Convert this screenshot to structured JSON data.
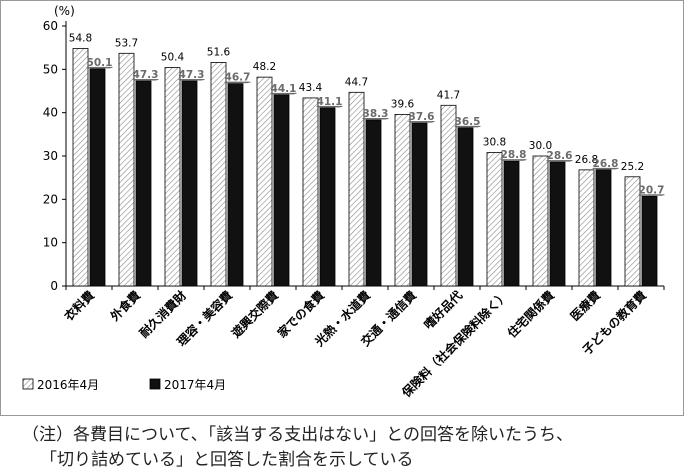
{
  "chart_data": {
    "type": "bar",
    "ylabel_unit": "(%)",
    "ylim": [
      0,
      60
    ],
    "yticks": [
      0,
      10,
      20,
      30,
      40,
      50,
      60
    ],
    "categories": [
      "衣料費",
      "外食費",
      "耐久消費財",
      "理容・美容費",
      "遊興交際費",
      "家での食費",
      "光熱・水道費",
      "交通・通信費",
      "嗜好品代",
      "保険料（社会保険料除く）",
      "住宅関係費",
      "医療費",
      "子どもの教育費"
    ],
    "series": [
      {
        "name": "2016年4月",
        "values": [
          54.8,
          53.7,
          50.4,
          51.6,
          48.2,
          43.4,
          44.7,
          39.6,
          41.7,
          30.8,
          30.0,
          26.8,
          25.2
        ]
      },
      {
        "name": "2017年4月",
        "values": [
          50.1,
          47.3,
          47.3,
          46.7,
          44.1,
          41.1,
          38.3,
          37.6,
          36.5,
          28.8,
          28.6,
          26.8,
          20.7
        ]
      }
    ],
    "value_labels": {
      "2016": [
        "54.8",
        "53.7",
        "50.4",
        "51.6",
        "48.2",
        "43.4",
        "44.7",
        "39.6",
        "41.7",
        "30.8",
        "30.0",
        "26.8",
        "25.2"
      ],
      "2017": [
        "50.1",
        "47.3",
        "47.3",
        "46.7",
        "44.1",
        "41.1",
        "38.3",
        "37.6",
        "36.5",
        "28.8",
        "28.6",
        "26.8",
        "20.7"
      ]
    },
    "legend_position": "bottom-left",
    "grid": false
  },
  "note": {
    "line1": "（注）各費目について、「該当する支出はない」との回答を除いたうち、",
    "line2": "「切り詰めている」と回答した割合を示している"
  },
  "colors": {
    "series_2017": "#111111",
    "hatch": "#888888",
    "axis": "#000000",
    "label_2017": "#6b6b6b"
  }
}
